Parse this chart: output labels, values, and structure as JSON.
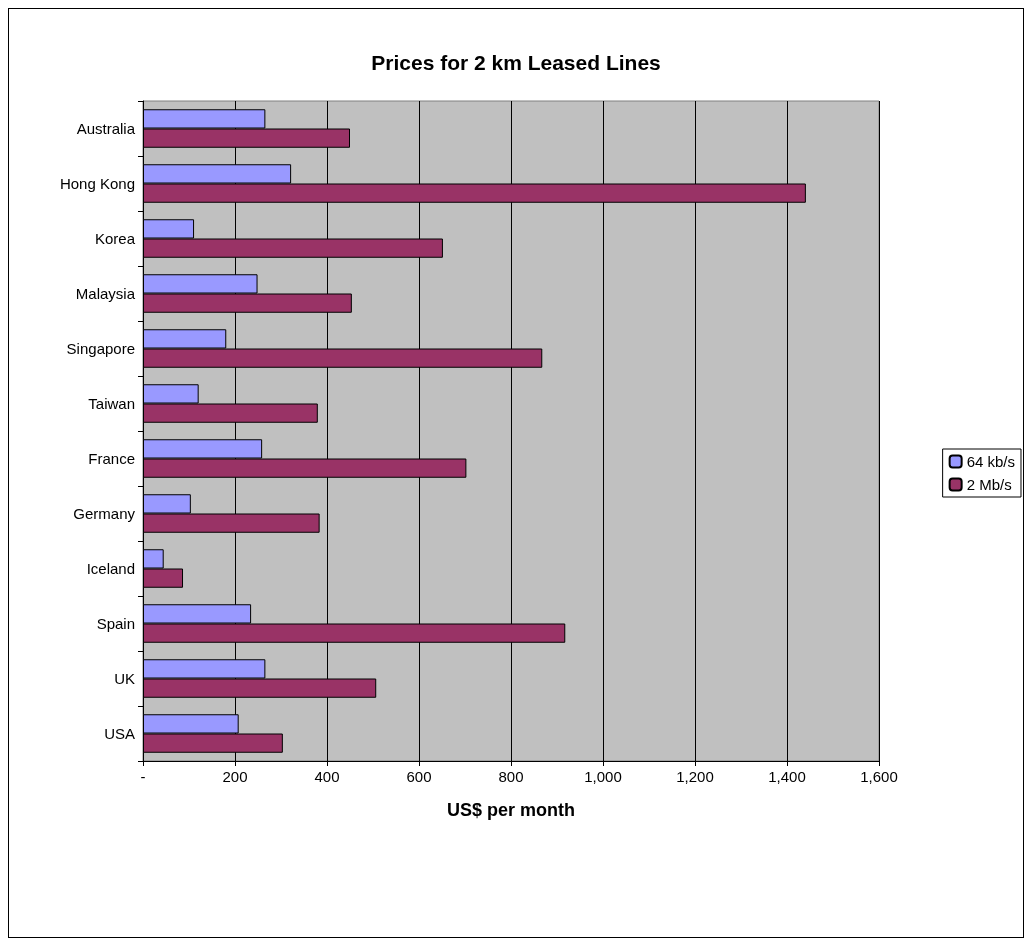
{
  "chart_data": {
    "type": "bar",
    "orientation": "horizontal",
    "title": "Prices for 2 km Leased Lines",
    "xlabel": "US$ per month",
    "categories": [
      "Australia",
      "Hong Kong",
      "Korea",
      "Malaysia",
      "Singapore",
      "Taiwan",
      "France",
      "Germany",
      "Iceland",
      "Spain",
      "UK",
      "USA"
    ],
    "series": [
      {
        "name": "64 kb/s",
        "color": "#9999ff",
        "values": [
          266,
          322,
          111,
          249,
          181,
          121,
          259,
          104,
          45,
          235,
          266,
          208
        ]
      },
      {
        "name": "2 Mb/s",
        "color": "#993366",
        "values": [
          450,
          1441,
          652,
          454,
          868,
          380,
          703,
          384,
          87,
          918,
          507,
          304
        ]
      }
    ],
    "xlim": [
      0,
      1600
    ],
    "xticks": [
      {
        "value": 0,
        "label": "-"
      },
      200,
      400,
      600,
      800,
      {
        "value": 1000,
        "label": "1,000"
      },
      {
        "value": 1200,
        "label": "1,200"
      },
      {
        "value": 1400,
        "label": "1,400"
      },
      {
        "value": 1600,
        "label": "1,600"
      }
    ],
    "grid": "x",
    "legend": "right"
  }
}
